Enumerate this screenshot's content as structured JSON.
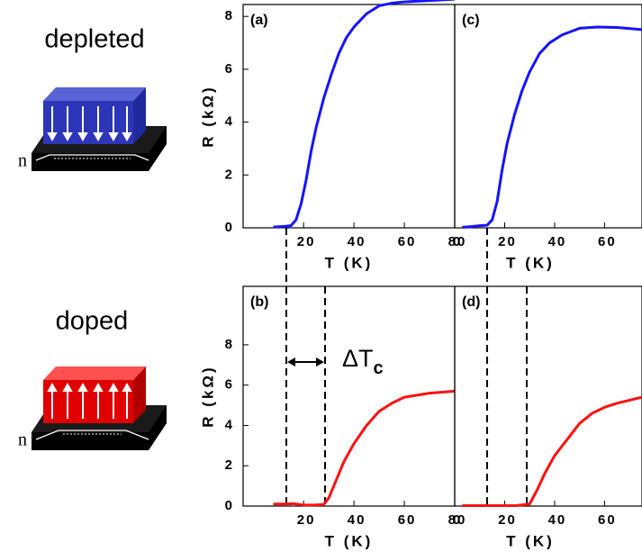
{
  "chart_data": [
    {
      "type": "line",
      "title": "(a)",
      "xlabel": "T (K)",
      "ylabel": "R (kΩ)",
      "x": [
        8,
        12,
        15,
        17,
        19,
        21,
        23,
        25,
        28,
        31,
        34,
        37,
        40,
        45,
        50,
        55,
        60,
        70,
        80
      ],
      "series": [
        {
          "color": "#1414ff",
          "values": [
            0.03,
            0.05,
            0.08,
            0.3,
            0.9,
            1.8,
            2.9,
            3.8,
            4.9,
            5.8,
            6.6,
            7.2,
            7.6,
            8.1,
            8.4,
            8.5,
            8.55,
            8.6,
            8.65
          ]
        }
      ],
      "xlim": [
        -4,
        80
      ],
      "xticks": [
        20,
        40,
        60,
        80
      ],
      "ylim": [
        0,
        8.45
      ],
      "yticks": [
        0,
        2,
        4,
        6,
        8
      ]
    },
    {
      "type": "line",
      "title": "(b)",
      "xlabel": "T (K)",
      "ylabel": "R (kΩ)",
      "x": [
        8,
        12,
        16,
        20,
        24,
        28,
        30,
        33,
        36,
        40,
        45,
        50,
        55,
        60,
        70,
        80
      ],
      "series": [
        {
          "color": "#ff1010",
          "values": [
            0.1,
            0.1,
            0.12,
            0.05,
            0.05,
            0.08,
            0.4,
            1.3,
            2.2,
            3.1,
            4.0,
            4.7,
            5.1,
            5.4,
            5.6,
            5.7
          ]
        }
      ],
      "xlim": [
        -4,
        80
      ],
      "xticks": [
        20,
        40,
        60,
        80
      ],
      "ylim": [
        0,
        10.9
      ],
      "yticks": [
        0,
        2,
        4,
        6,
        8
      ]
    },
    {
      "type": "line",
      "title": "(c)",
      "xlabel": "T (K)",
      "x": [
        3,
        7,
        10,
        13,
        15,
        17,
        19,
        21,
        24,
        27,
        30,
        34,
        38,
        43,
        50,
        57,
        65,
        75
      ],
      "series": [
        {
          "color": "#1414ff",
          "values": [
            0.02,
            0.05,
            0.08,
            0.1,
            0.3,
            1.0,
            2.2,
            3.2,
            4.3,
            5.2,
            5.9,
            6.6,
            7.0,
            7.3,
            7.55,
            7.6,
            7.58,
            7.5
          ]
        }
      ],
      "xlim": [
        0,
        75
      ],
      "xticks": [
        0,
        20,
        40,
        60
      ],
      "ylim": [
        0,
        8.45
      ]
    },
    {
      "type": "line",
      "title": "(d)",
      "xlabel": "T (K)",
      "x": [
        3,
        10,
        15,
        20,
        25,
        30,
        33,
        36,
        40,
        45,
        50,
        55,
        60,
        65,
        75
      ],
      "series": [
        {
          "color": "#ff1010",
          "values": [
            0.02,
            0.02,
            0.02,
            0.02,
            0.03,
            0.1,
            0.8,
            1.6,
            2.5,
            3.3,
            4.1,
            4.6,
            4.9,
            5.1,
            5.4
          ]
        }
      ],
      "xlim": [
        0,
        75
      ],
      "xticks": [
        0,
        20,
        40,
        60
      ],
      "ylim": [
        0,
        10.9
      ]
    }
  ],
  "labels": {
    "depleted": "depleted",
    "doped": "doped",
    "n_top": "n",
    "n_bottom": "n",
    "delta": "ΔT",
    "delta_sub": "c"
  }
}
